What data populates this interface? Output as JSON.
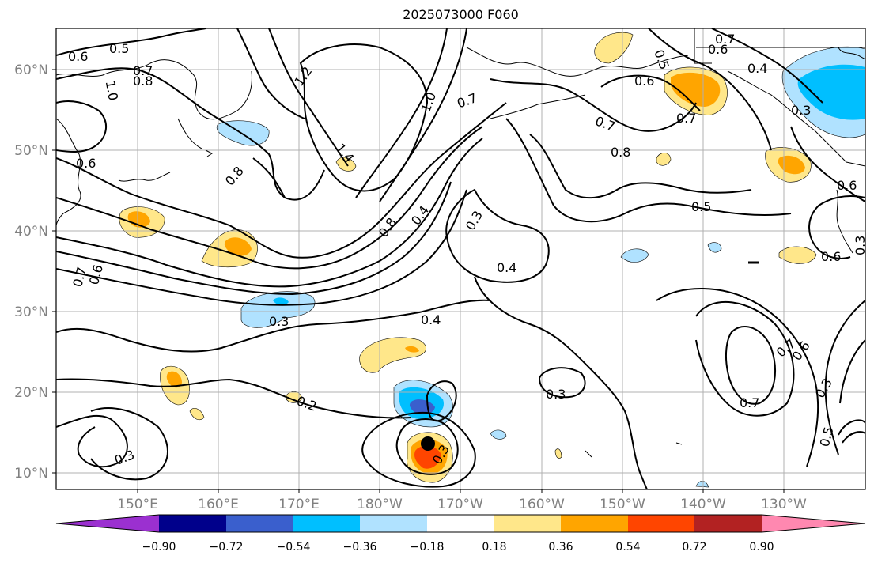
{
  "title": "2025073000 F060",
  "map": {
    "lat_labels": [
      "60°N",
      "50°N",
      "40°N",
      "30°N",
      "20°N",
      "10°N"
    ],
    "lon_labels": [
      "150°E",
      "160°E",
      "170°E",
      "180°W",
      "170°W",
      "160°W",
      "150°W",
      "140°W",
      "130°W"
    ]
  },
  "colorbar": {
    "colors": [
      "#9b30d0",
      "#00008b",
      "#3a5fcd",
      "#00bfff",
      "#b0e2ff",
      "#ffffff",
      "#ffe78a",
      "#ffa500",
      "#ff4500",
      "#b22222",
      "#ff88b0"
    ],
    "labels": [
      "−0.90",
      "−0.72",
      "−0.54",
      "−0.36",
      "−0.18",
      "0.18",
      "0.36",
      "0.54",
      "0.72",
      "0.90"
    ]
  },
  "contour_labels": [
    "0.5",
    "0.6",
    "0.7",
    "0.8",
    "1.0",
    "1.2",
    "1.4",
    "0.6",
    "0.8",
    "0.8",
    "0.4",
    "0.3",
    "1.0",
    "0.7",
    "0.5",
    "0.6",
    "0.7",
    "0.7",
    "0.8",
    "0.5",
    "0.7",
    "0.6",
    "0.4",
    "0.3",
    "0.6",
    "0.6",
    "0.7",
    "0.6",
    "0.3",
    "0.4",
    "0.4",
    "0.3",
    "0.2",
    "0.3",
    "0.3",
    "0.3",
    "0.7",
    "0.7",
    "0.6",
    "0.3",
    "0.5"
  ]
}
